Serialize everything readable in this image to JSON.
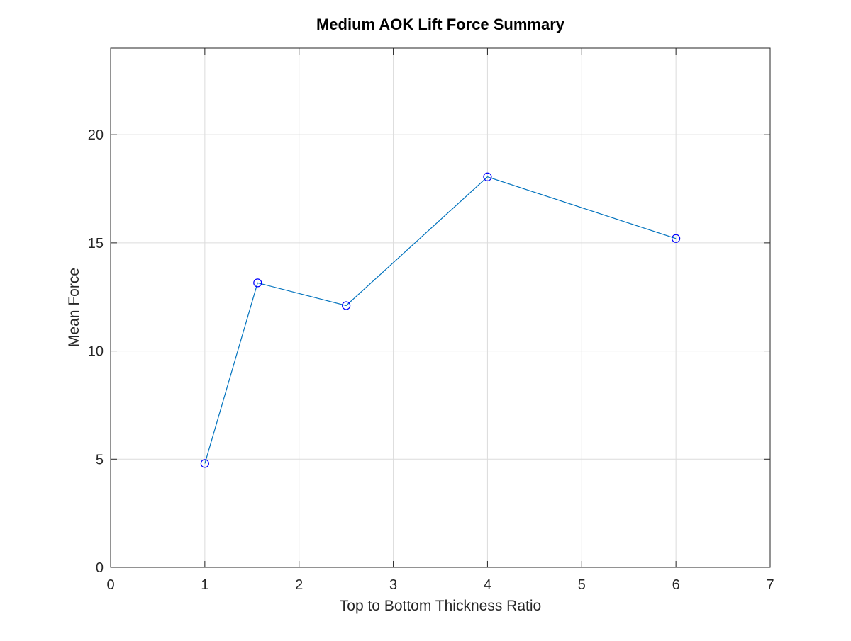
{
  "chart_data": {
    "type": "line",
    "title": "Medium AOK Lift Force Summary",
    "xlabel": "Top to Bottom Thickness Ratio",
    "ylabel": "Mean Force",
    "xlim": [
      0,
      7
    ],
    "ylim": [
      0,
      24
    ],
    "xticks": [
      0,
      1,
      2,
      3,
      4,
      5,
      6,
      7
    ],
    "yticks": [
      0,
      5,
      10,
      15,
      20
    ],
    "grid": true,
    "series": [
      {
        "x": [
          1,
          1.56,
          2.5,
          4,
          6
        ],
        "y": [
          4.8,
          13.15,
          12.1,
          18.05,
          15.2
        ],
        "line_color": "#0072BD",
        "marker": "circle",
        "marker_color": "#0000FF"
      }
    ]
  }
}
